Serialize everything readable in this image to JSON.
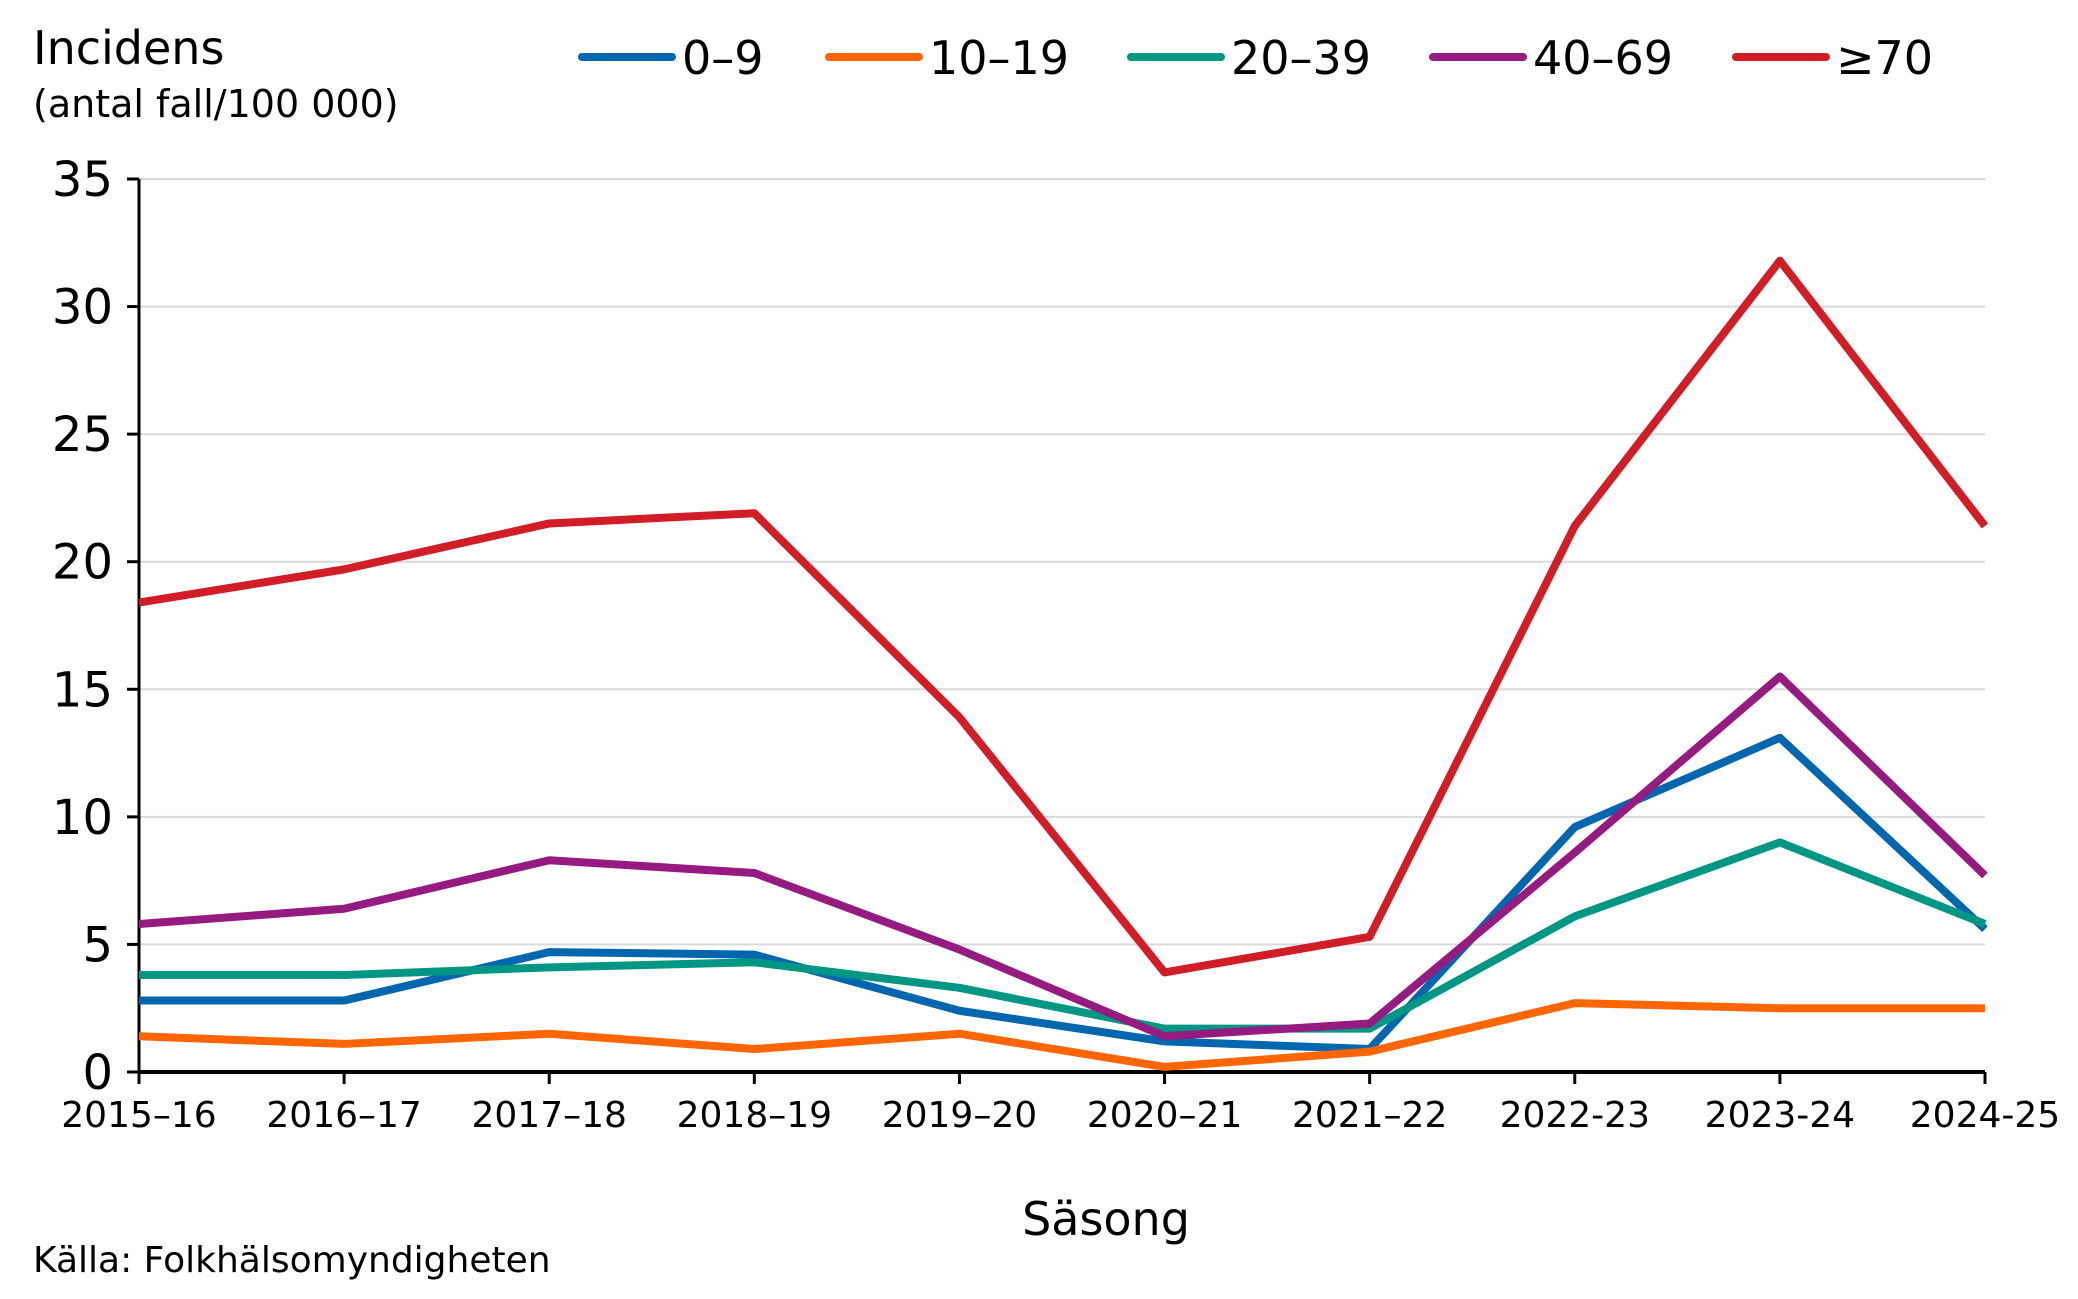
{
  "chart_data": {
    "type": "line",
    "ylabel": "Incidens",
    "ylabel_sub": "(antal fall/100 000)",
    "xlabel": "Säsong",
    "source": "Källa: Folkhälsomyndigheten",
    "ylim": [
      0,
      35
    ],
    "yticks": [
      0,
      5,
      10,
      15,
      20,
      25,
      30,
      35
    ],
    "grid": true,
    "legend_position": "top",
    "categories": [
      "2015–16",
      "2016–17",
      "2017–18",
      "2018–19",
      "2019–20",
      "2020–21",
      "2021–22",
      "2022-23",
      "2023-24",
      "2024-25"
    ],
    "series": [
      {
        "name": "0–9",
        "color": "#0066AE",
        "values": [
          2.8,
          2.8,
          4.7,
          4.6,
          2.4,
          1.2,
          0.9,
          9.6,
          13.1,
          5.6
        ]
      },
      {
        "name": "10–19",
        "color": "#FF6600",
        "values": [
          1.4,
          1.1,
          1.5,
          0.9,
          1.5,
          0.2,
          0.8,
          2.7,
          2.5,
          2.5
        ]
      },
      {
        "name": "20–39",
        "color": "#009684",
        "values": [
          3.8,
          3.8,
          4.1,
          4.3,
          3.3,
          1.7,
          1.7,
          6.1,
          9.0,
          5.8
        ]
      },
      {
        "name": "40–69",
        "color": "#951B81",
        "values": [
          5.8,
          6.4,
          8.3,
          7.8,
          4.8,
          1.4,
          1.9,
          8.6,
          15.5,
          7.7
        ]
      },
      {
        "name": "≥70",
        "color": "#D01D26",
        "values": [
          18.4,
          19.7,
          21.5,
          21.9,
          13.9,
          3.9,
          5.3,
          21.4,
          31.8,
          21.4
        ]
      }
    ]
  }
}
